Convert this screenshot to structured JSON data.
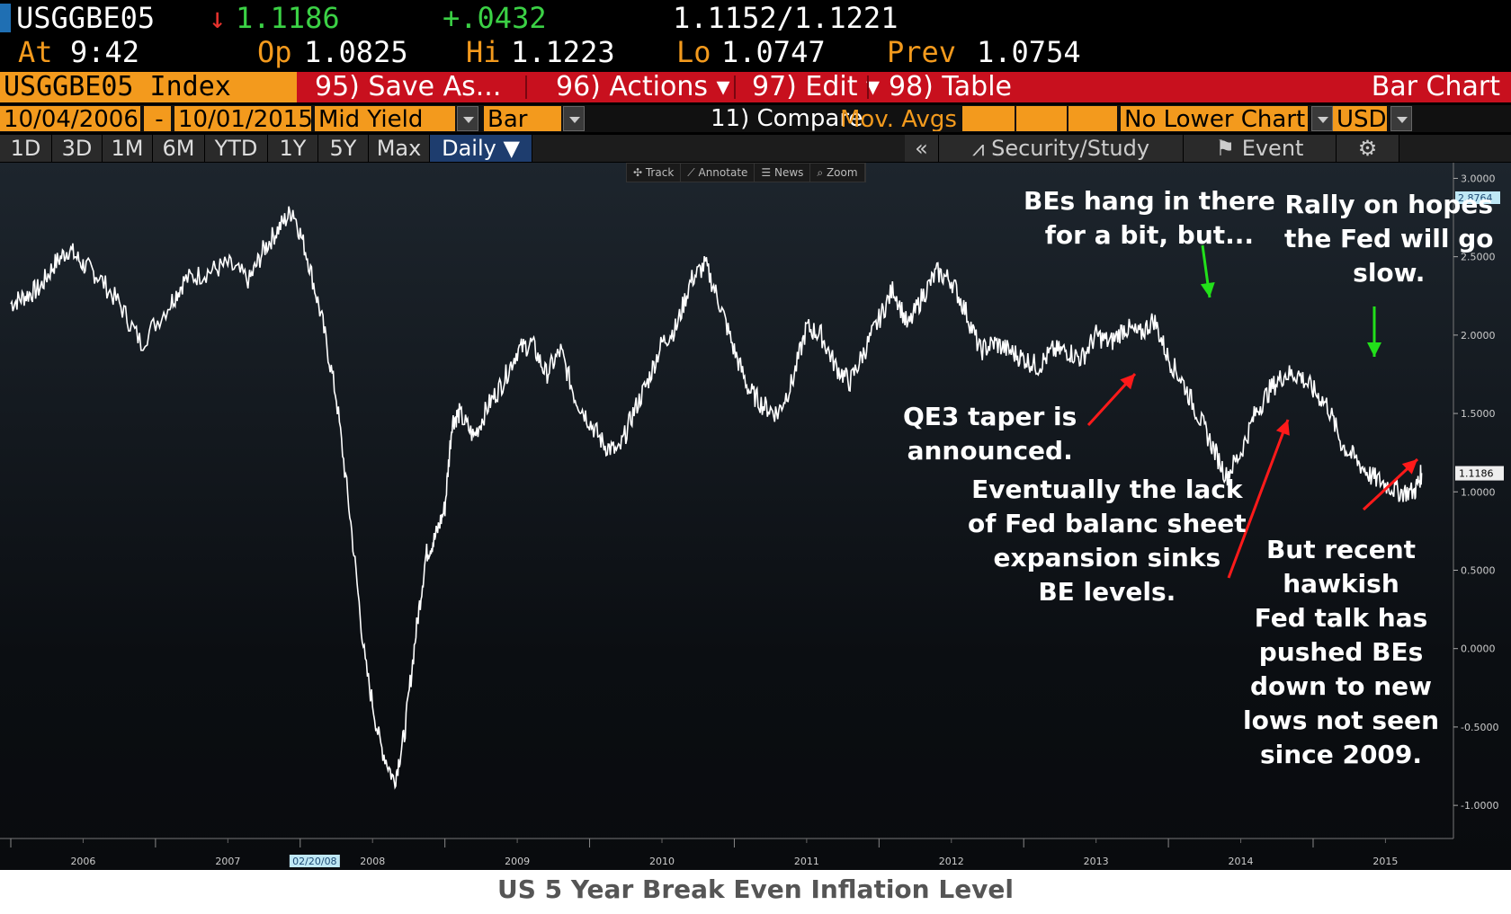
{
  "quote": {
    "ticker": "USGGBE05",
    "arrow": "↓",
    "last": "1.1186",
    "change": "+.0432",
    "bid_ask": "1.1152/1.1221",
    "at_label": "At",
    "time": "9:42",
    "op_label": "Op",
    "open": "1.0825",
    "hi_label": "Hi",
    "high": "1.1223",
    "lo_label": "Lo",
    "low": "1.0747",
    "prev_label": "Prev",
    "prev": "1.0754"
  },
  "function_bar": {
    "security": "USGGBE05 Index",
    "save_as": "95) Save As...",
    "actions": "96) Actions ▾",
    "edit": "97) Edit ▾",
    "table": "98) Table",
    "chart_name": "Bar Chart"
  },
  "settings": {
    "start_date": "10/04/2006",
    "dash": "-",
    "end_date": "10/01/2015",
    "field": "Mid Yield",
    "chart_type": "Bar",
    "compare": "11) Compare",
    "mov_avgs": "Mov. Avgs",
    "lower_chart": "No Lower Chart",
    "currency": "USD"
  },
  "periods": [
    "1D",
    "3D",
    "1M",
    "6M",
    "YTD",
    "1Y",
    "5Y",
    "Max"
  ],
  "active_period": "Daily ▼",
  "right_tools": {
    "collapse": "«",
    "security_study": "Security/Study",
    "event": "Event",
    "settings_icon": "gear-icon"
  },
  "chart_toolbar": [
    "✣ Track",
    "⟋ Annotate",
    "☰ News",
    "⌕ Zoom"
  ],
  "colors": {
    "orange": "#f39a1d",
    "green": "#3bd145",
    "red": "#e5322d",
    "bar_red": "#c8101e",
    "series": "#ffffff",
    "arrow_green": "#22e01a",
    "arrow_red": "#ff1a1a"
  },
  "annotations": [
    {
      "id": "bes-hang",
      "text": [
        "BEs hang in there",
        "for a bit, but..."
      ]
    },
    {
      "id": "rally",
      "text": [
        "Rally on hopes",
        "the Fed will go",
        "slow."
      ]
    },
    {
      "id": "qe3",
      "text": [
        "QE3 taper is",
        "announced."
      ]
    },
    {
      "id": "eventually",
      "text": [
        "Eventually the lack",
        "of Fed balanc sheet",
        "expansion sinks",
        "BE levels."
      ]
    },
    {
      "id": "hawkish",
      "text": [
        "But recent",
        "hawkish",
        "Fed talk has",
        "pushed BEs",
        "down to new",
        "lows not seen",
        "since 2009."
      ]
    }
  ],
  "caption": "US 5 Year Break Even Inflation Level",
  "chart_data": {
    "type": "line",
    "title": "",
    "xlabel": "",
    "ylabel": "",
    "ylim": [
      -1.2,
      3.1
    ],
    "xlim": [
      2006.0,
      2015.92
    ],
    "y_ticks": [
      "3.0000",
      "2.5000",
      "2.0000",
      "1.5000",
      "1.0000",
      "0.5000",
      "0.0000",
      "-0.5000",
      "-1.0000"
    ],
    "x_ticks": [
      "2006",
      "2007",
      "2008",
      "2009",
      "2010",
      "2011",
      "2012",
      "2013",
      "2014",
      "2015"
    ],
    "cursor_date": "02/20/08",
    "last_value": "1.1186",
    "high_value": "2.8764",
    "grid": false,
    "series": [
      {
        "x": [
          2006.0,
          2006.1,
          2006.2,
          2006.3,
          2006.4,
          2006.5,
          2006.6,
          2006.75,
          2006.9,
          2007.1,
          2007.2,
          2007.35,
          2007.5,
          2007.65,
          2007.75,
          2007.85,
          2007.95,
          2008.05,
          2008.15,
          2008.25,
          2008.35,
          2008.45,
          2008.55,
          2008.65,
          2008.72,
          2008.8,
          2008.87,
          2008.93,
          2009.0,
          2009.05,
          2009.1,
          2009.2,
          2009.3,
          2009.4,
          2009.5,
          2009.6,
          2009.7,
          2009.8,
          2009.9,
          2010.0,
          2010.1,
          2010.2,
          2010.3,
          2010.4,
          2010.5,
          2010.6,
          2010.7,
          2010.8,
          2010.9,
          2011.0,
          2011.1,
          2011.2,
          2011.3,
          2011.4,
          2011.5,
          2011.6,
          2011.7,
          2011.8,
          2011.9,
          2012.0,
          2012.1,
          2012.2,
          2012.3,
          2012.4,
          2012.5,
          2012.6,
          2012.7,
          2012.8,
          2012.9,
          2013.0,
          2013.1,
          2013.2,
          2013.3,
          2013.4,
          2013.5,
          2013.6,
          2013.7,
          2013.8,
          2013.9,
          2014.0,
          2014.1,
          2014.2,
          2014.3,
          2014.4,
          2014.5,
          2014.6,
          2014.7,
          2014.8,
          2014.9,
          2015.0,
          2015.1,
          2015.2,
          2015.3,
          2015.4,
          2015.5,
          2015.6,
          2015.7,
          2015.75
        ],
        "values": [
          2.2,
          2.25,
          2.3,
          2.45,
          2.55,
          2.45,
          2.38,
          2.2,
          1.95,
          2.2,
          2.35,
          2.4,
          2.45,
          2.35,
          2.55,
          2.68,
          2.8,
          2.5,
          2.1,
          1.6,
          0.8,
          -0.1,
          -0.6,
          -0.85,
          -0.55,
          0.1,
          0.6,
          0.7,
          0.9,
          1.45,
          1.5,
          1.35,
          1.55,
          1.7,
          1.9,
          1.95,
          1.75,
          1.9,
          1.6,
          1.45,
          1.3,
          1.25,
          1.5,
          1.7,
          1.95,
          2.05,
          2.35,
          2.45,
          2.2,
          1.9,
          1.65,
          1.55,
          1.5,
          1.7,
          2.05,
          2.0,
          1.8,
          1.7,
          1.9,
          2.1,
          2.3,
          2.05,
          2.25,
          2.4,
          2.35,
          2.15,
          1.9,
          1.95,
          1.9,
          1.85,
          1.8,
          1.9,
          1.9,
          1.85,
          2.0,
          1.95,
          2.05,
          2.0,
          2.1,
          1.85,
          1.7,
          1.5,
          1.3,
          1.1,
          1.25,
          1.5,
          1.65,
          1.75,
          1.75,
          1.65,
          1.55,
          1.3,
          1.2,
          1.1,
          1.05,
          1.0,
          1.0,
          1.12
        ]
      }
    ]
  }
}
